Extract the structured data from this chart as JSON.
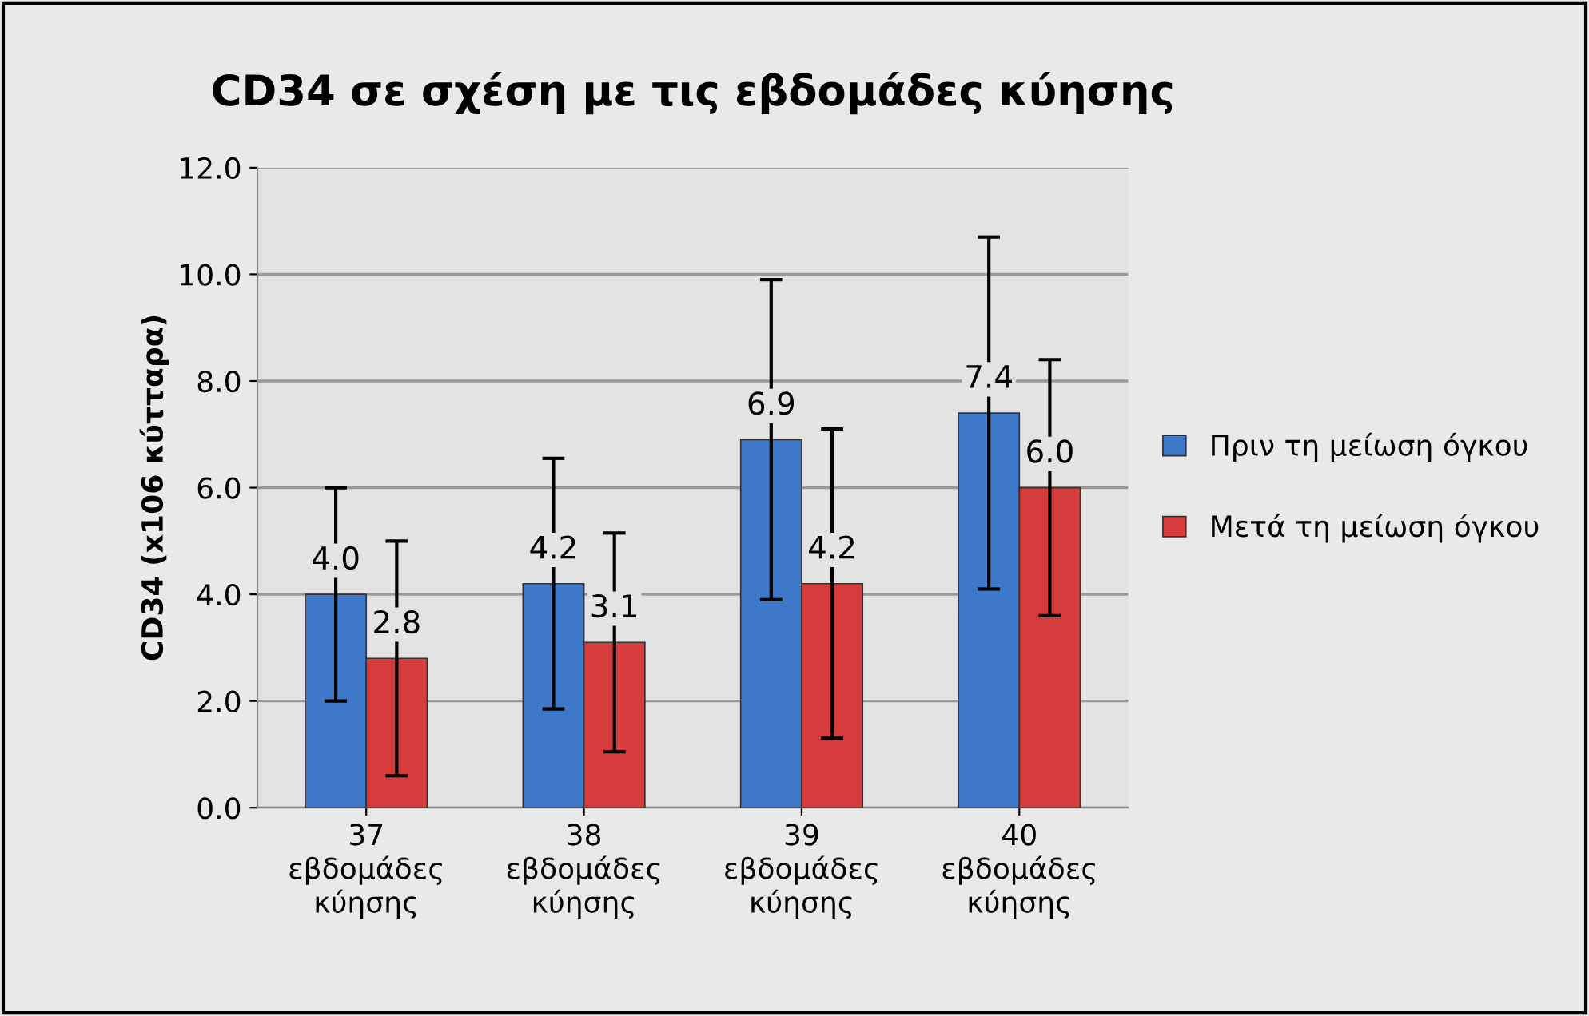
{
  "chart_data": {
    "type": "bar",
    "title": "CD34 σε σχέση με τις εβδομάδες κύησης",
    "ylabel": "CD34 (x106 κύτταρα)",
    "categories": [
      "37\nεβδομάδες\nκύησης",
      "38\nεβδομάδες\nκύησης",
      "39\nεβδομάδες\nκύησης",
      "40\nεβδομάδες\nκύησης"
    ],
    "series": [
      {
        "name": "Πριν τη μείωση όγκου",
        "color": "#3d78c9",
        "values": [
          4.0,
          4.2,
          6.9,
          7.4
        ],
        "errors": [
          2.0,
          2.35,
          3.0,
          3.3
        ],
        "value_labels": [
          "4.0",
          "4.2",
          "6.9",
          "7.4"
        ]
      },
      {
        "name": "Μετά τη μείωση όγκου",
        "color": "#d63c3c",
        "values": [
          2.8,
          3.1,
          4.2,
          6.0
        ],
        "errors": [
          2.2,
          2.05,
          2.9,
          2.4
        ],
        "value_labels": [
          "2.8",
          "3.1",
          "4.2",
          "6.0"
        ]
      }
    ],
    "ylim": [
      0,
      12
    ],
    "yticks": [
      {
        "value": 0,
        "label": "0.0"
      },
      {
        "value": 2,
        "label": "2.0"
      },
      {
        "value": 4,
        "label": "4.0"
      },
      {
        "value": 6,
        "label": "6.0"
      },
      {
        "value": 8,
        "label": "8.0"
      },
      {
        "value": 10,
        "label": "10.0"
      },
      {
        "value": 12,
        "label": "12.0"
      }
    ],
    "grid": "y",
    "legend": "right"
  }
}
